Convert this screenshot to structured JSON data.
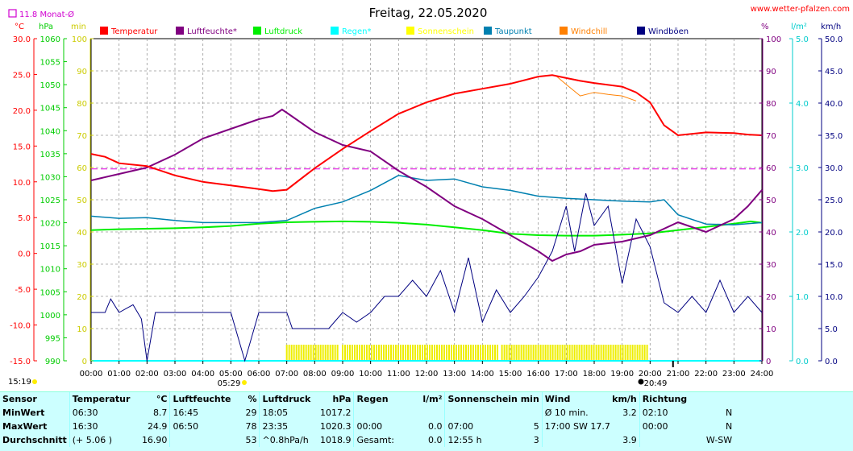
{
  "chart_data": {
    "type": "line",
    "title": "Freitag, 22.05.2020",
    "site": "www.wetter-pfalzen.com",
    "month_avg_label": "11.8 Monat-Ø",
    "axis_units": {
      "temp": "°C",
      "pressure": "hPa",
      "sun": "min",
      "humidity": "%",
      "rain": "l/m²",
      "wind": "km/h"
    },
    "axes": {
      "temp": {
        "min": -15,
        "max": 30,
        "ticks": [
          "30.0",
          "25.0",
          "20.0",
          "15.0",
          "10.0",
          "5.0",
          "0.0",
          "-5.0",
          "-10.0",
          "-15.0"
        ],
        "color": "#ff0000"
      },
      "pressure": {
        "min": 990,
        "max": 1060,
        "ticks": [
          "1060",
          "1055",
          "1050",
          "1045",
          "1040",
          "1035",
          "1030",
          "1025",
          "1020",
          "1015",
          "1010",
          "1005",
          "1000",
          "995",
          "990"
        ],
        "color": "#00cc00"
      },
      "sun": {
        "min": 0,
        "max": 100,
        "ticks": [
          "100",
          "90",
          "80",
          "70",
          "60",
          "50",
          "40",
          "30",
          "20",
          "10",
          "0"
        ],
        "color": "#cccc00"
      },
      "humidity": {
        "min": 0,
        "max": 100,
        "ticks": [
          "100",
          "90",
          "80",
          "70",
          "60",
          "50",
          "40",
          "30",
          "20",
          "10",
          "0"
        ],
        "color": "#800080"
      },
      "rain": {
        "min": 0,
        "max": 5,
        "ticks": [
          "5.0",
          "4.0",
          "3.0",
          "2.0",
          "1.0",
          "0.0"
        ],
        "color": "#00cccc"
      },
      "wind": {
        "min": 0,
        "max": 50,
        "ticks": [
          "50.0",
          "45.0",
          "40.0",
          "35.0",
          "30.0",
          "25.0",
          "20.0",
          "15.0",
          "10.0",
          "5.0",
          "0.0"
        ],
        "color": "#000080"
      }
    },
    "x_ticks": [
      "00:00",
      "01:00",
      "02:00",
      "03:00",
      "04:00",
      "05:00",
      "06:00",
      "07:00",
      "08:00",
      "09:00",
      "10:00",
      "11:00",
      "12:00",
      "13:00",
      "14:00",
      "15:00",
      "16:00",
      "17:00",
      "18:00",
      "19:00",
      "20:00",
      "21:00",
      "22:00",
      "23:00",
      "24:00"
    ],
    "sunrise": "05:29",
    "sunset": "20:49",
    "left_time": "15:19",
    "legend": [
      {
        "name": "Temperatur",
        "color": "#ff0000"
      },
      {
        "name": "Luftfeuchte*",
        "color": "#800080"
      },
      {
        "name": "Luftdruck",
        "color": "#00ee00"
      },
      {
        "name": "Regen*",
        "color": "#00ffff"
      },
      {
        "name": "Sonnenschein",
        "color": "#ffff00"
      },
      {
        "name": "Taupunkt",
        "color": "#0080b0"
      },
      {
        "name": "Windchill",
        "color": "#ff8000"
      },
      {
        "name": "Windböen",
        "color": "#000080"
      }
    ],
    "month_avg_temp": 11.8,
    "series": {
      "temperature": [
        [
          0,
          13.9
        ],
        [
          0.5,
          13.5
        ],
        [
          1,
          12.6
        ],
        [
          2,
          12.2
        ],
        [
          3,
          10.9
        ],
        [
          4,
          10.0
        ],
        [
          5,
          9.5
        ],
        [
          6,
          9.0
        ],
        [
          6.5,
          8.7
        ],
        [
          7,
          8.9
        ],
        [
          8,
          11.9
        ],
        [
          9,
          14.6
        ],
        [
          10,
          17.1
        ],
        [
          11,
          19.5
        ],
        [
          12,
          21.1
        ],
        [
          13,
          22.3
        ],
        [
          14,
          23.0
        ],
        [
          15,
          23.7
        ],
        [
          16,
          24.7
        ],
        [
          16.5,
          24.9
        ],
        [
          17,
          24.5
        ],
        [
          17.5,
          24.1
        ],
        [
          18,
          23.8
        ],
        [
          19,
          23.3
        ],
        [
          19.5,
          22.5
        ],
        [
          20,
          21.1
        ],
        [
          20.5,
          17.9
        ],
        [
          21,
          16.5
        ],
        [
          22,
          16.9
        ],
        [
          23,
          16.8
        ],
        [
          23.5,
          16.6
        ],
        [
          24,
          16.5
        ]
      ],
      "humidity": [
        [
          0,
          56
        ],
        [
          1,
          58
        ],
        [
          2,
          60
        ],
        [
          3,
          64
        ],
        [
          4,
          69
        ],
        [
          5,
          72
        ],
        [
          6,
          75
        ],
        [
          6.5,
          76
        ],
        [
          6.83,
          78
        ],
        [
          7,
          77
        ],
        [
          8,
          71
        ],
        [
          9,
          67
        ],
        [
          10,
          65
        ],
        [
          11,
          59
        ],
        [
          12,
          54
        ],
        [
          13,
          48
        ],
        [
          14,
          44
        ],
        [
          15,
          39
        ],
        [
          16,
          34
        ],
        [
          16.5,
          31
        ],
        [
          17,
          33
        ],
        [
          17.5,
          34
        ],
        [
          18,
          36
        ],
        [
          19,
          37
        ],
        [
          20,
          39
        ],
        [
          21,
          43
        ],
        [
          22,
          40
        ],
        [
          23,
          44
        ],
        [
          23.5,
          48
        ],
        [
          24,
          53
        ]
      ],
      "pressure": [
        [
          0,
          1018.4
        ],
        [
          1,
          1018.6
        ],
        [
          2,
          1018.7
        ],
        [
          3,
          1018.8
        ],
        [
          4,
          1019.0
        ],
        [
          5,
          1019.3
        ],
        [
          6,
          1019.8
        ],
        [
          7,
          1020.1
        ],
        [
          8,
          1020.2
        ],
        [
          9,
          1020.3
        ],
        [
          10,
          1020.2
        ],
        [
          11,
          1020.0
        ],
        [
          12,
          1019.6
        ],
        [
          13,
          1019.0
        ],
        [
          14,
          1018.4
        ],
        [
          15,
          1017.6
        ],
        [
          16,
          1017.3
        ],
        [
          17,
          1017.2
        ],
        [
          18,
          1017.2
        ],
        [
          19,
          1017.4
        ],
        [
          20,
          1017.7
        ],
        [
          21,
          1018.4
        ],
        [
          22,
          1019.1
        ],
        [
          23,
          1019.8
        ],
        [
          23.6,
          1020.3
        ],
        [
          24,
          1020.0
        ]
      ],
      "dewpoint": [
        [
          0,
          5.2
        ],
        [
          1,
          4.9
        ],
        [
          2,
          5.0
        ],
        [
          3,
          4.6
        ],
        [
          4,
          4.3
        ],
        [
          5,
          4.3
        ],
        [
          6,
          4.3
        ],
        [
          7,
          4.6
        ],
        [
          8,
          6.3
        ],
        [
          9,
          7.2
        ],
        [
          10,
          8.8
        ],
        [
          11,
          10.9
        ],
        [
          12,
          10.2
        ],
        [
          13,
          10.4
        ],
        [
          14,
          9.3
        ],
        [
          15,
          8.8
        ],
        [
          16,
          8.0
        ],
        [
          17,
          7.7
        ],
        [
          18,
          7.5
        ],
        [
          19,
          7.3
        ],
        [
          20,
          7.2
        ],
        [
          20.5,
          7.5
        ],
        [
          21,
          5.4
        ],
        [
          22,
          4.1
        ],
        [
          23,
          4.0
        ],
        [
          24,
          4.3
        ]
      ],
      "windchill": [
        [
          16.6,
          24.9
        ],
        [
          17,
          23.6
        ],
        [
          17.5,
          22.0
        ],
        [
          18,
          22.5
        ],
        [
          18.5,
          22.2
        ],
        [
          19,
          22.0
        ],
        [
          19.5,
          21.3
        ]
      ],
      "gusts": [
        [
          0,
          7.5
        ],
        [
          0.5,
          7.5
        ],
        [
          0.7,
          9.6
        ],
        [
          1,
          7.5
        ],
        [
          1.5,
          8.7
        ],
        [
          1.8,
          6.5
        ],
        [
          2.0,
          0
        ],
        [
          2.3,
          7.5
        ],
        [
          3,
          7.5
        ],
        [
          4,
          7.5
        ],
        [
          5,
          7.5
        ],
        [
          5.5,
          0
        ],
        [
          6,
          7.5
        ],
        [
          7,
          7.5
        ],
        [
          7.2,
          5.0
        ],
        [
          8,
          5.0
        ],
        [
          8.5,
          5.0
        ],
        [
          9,
          7.5
        ],
        [
          9.5,
          6.0
        ],
        [
          10,
          7.5
        ],
        [
          10.5,
          10.0
        ],
        [
          11,
          10.0
        ],
        [
          11.5,
          12.5
        ],
        [
          12,
          10.0
        ],
        [
          12.5,
          14.0
        ],
        [
          13,
          7.5
        ],
        [
          13.5,
          16.0
        ],
        [
          14,
          6.0
        ],
        [
          14.5,
          11.0
        ],
        [
          15,
          7.5
        ],
        [
          15.5,
          10.0
        ],
        [
          16,
          13.0
        ],
        [
          16.5,
          17.0
        ],
        [
          17,
          24.0
        ],
        [
          17.3,
          17.0
        ],
        [
          17.7,
          26.0
        ],
        [
          18,
          21.0
        ],
        [
          18.5,
          24.0
        ],
        [
          19,
          12.0
        ],
        [
          19.5,
          22.0
        ],
        [
          20,
          17.7
        ],
        [
          20.5,
          9.0
        ],
        [
          21,
          7.5
        ],
        [
          21.5,
          10.0
        ],
        [
          22,
          7.5
        ],
        [
          22.5,
          12.5
        ],
        [
          23,
          7.5
        ],
        [
          23.5,
          10.0
        ],
        [
          24,
          7.5
        ]
      ]
    },
    "sunshine_blocks": [
      [
        7.0,
        8.9
      ],
      [
        9.0,
        14.6
      ],
      [
        14.7,
        19.9
      ]
    ]
  },
  "stats": {
    "headers": {
      "sensor": "Sensor",
      "temp": "Temperatur",
      "temp_unit": "°C",
      "hum": "Luftfeuchte",
      "hum_unit": "%",
      "press": "Luftdruck",
      "press_unit": "hPa",
      "rain": "Regen",
      "rain_unit": "l/m²",
      "sun": "Sonnenschein min",
      "wind": "Wind",
      "wind_unit": "km/h",
      "dir": "Richtung"
    },
    "min": {
      "label": "MinWert",
      "temp_time": "06:30",
      "temp": "8.7",
      "hum_time": "16:45",
      "hum": "29",
      "press_time": "18:05",
      "press": "1017.2",
      "rain_time": "",
      "rain": "",
      "sun_time": "",
      "sun": "",
      "wind_label": "Ø 10 min.",
      "wind": "3.2",
      "dir_time": "02:10",
      "dir": "N"
    },
    "max": {
      "label": "MaxWert",
      "temp_time": "16:30",
      "temp": "24.9",
      "hum_time": "06:50",
      "hum": "78",
      "press_time": "23:35",
      "press": "1020.3",
      "rain_time": "00:00",
      "rain": "0.0",
      "sun_time": "07:00",
      "sun": "5",
      "wind_label": "17:00   SW 17.7",
      "wind": "",
      "dir_time": "00:00",
      "dir": "N"
    },
    "avg": {
      "label": "Durchschnitt",
      "temp_time": "(+ 5.06 )",
      "temp": "16.90",
      "hum_time": "",
      "hum": "53",
      "press_time": "^0.8hPa/h",
      "press": "1018.9",
      "rain_time": "Gesamt:",
      "rain": "0.0",
      "sun_time": "12:55 h",
      "sun": "3",
      "wind_label": "",
      "wind": "3.9",
      "dir_time": "",
      "dir": "W-SW"
    }
  }
}
